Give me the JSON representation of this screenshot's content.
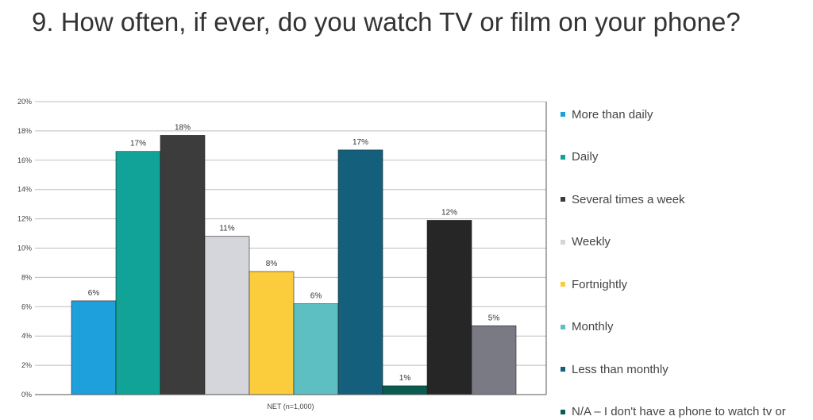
{
  "title": "9. How often, if ever, do you watch TV or film on your phone?",
  "chart_data": {
    "type": "bar",
    "categories": [
      "NET (n=1,000)"
    ],
    "xlabel": "",
    "ylabel": "",
    "ylim": [
      0,
      20
    ],
    "yticks": [
      "0%",
      "2%",
      "4%",
      "6%",
      "8%",
      "10%",
      "12%",
      "14%",
      "16%",
      "18%",
      "20%"
    ],
    "grid": true,
    "legend_position": "right",
    "series": [
      {
        "name": "More than daily",
        "value": 6.4,
        "label": "6%",
        "color": "#1ea0dc"
      },
      {
        "name": "Daily",
        "value": 16.6,
        "label": "17%",
        "color": "#12a398"
      },
      {
        "name": "Several times a week",
        "value": 17.7,
        "label": "18%",
        "color": "#3c3c3c"
      },
      {
        "name": "Weekly",
        "value": 10.8,
        "label": "11%",
        "color": "#d5d5dc"
      },
      {
        "name": "Fortnightly",
        "value": 8.4,
        "label": "8%",
        "color": "#fbcd3d"
      },
      {
        "name": "Monthly",
        "value": 6.2,
        "label": "6%",
        "color": "#5ebfc2"
      },
      {
        "name": "Less than monthly",
        "value": 16.7,
        "label": "17%",
        "color": "#135f7c"
      },
      {
        "name": "N/A – I don't have a phone to watch tv or",
        "value": 0.6,
        "label": "1%",
        "color": "#0a5c50"
      },
      {
        "name": "",
        "value": 11.9,
        "label": "12%",
        "color": "#262626"
      },
      {
        "name": "",
        "value": 4.7,
        "label": "5%",
        "color": "#7a7a85"
      }
    ]
  }
}
